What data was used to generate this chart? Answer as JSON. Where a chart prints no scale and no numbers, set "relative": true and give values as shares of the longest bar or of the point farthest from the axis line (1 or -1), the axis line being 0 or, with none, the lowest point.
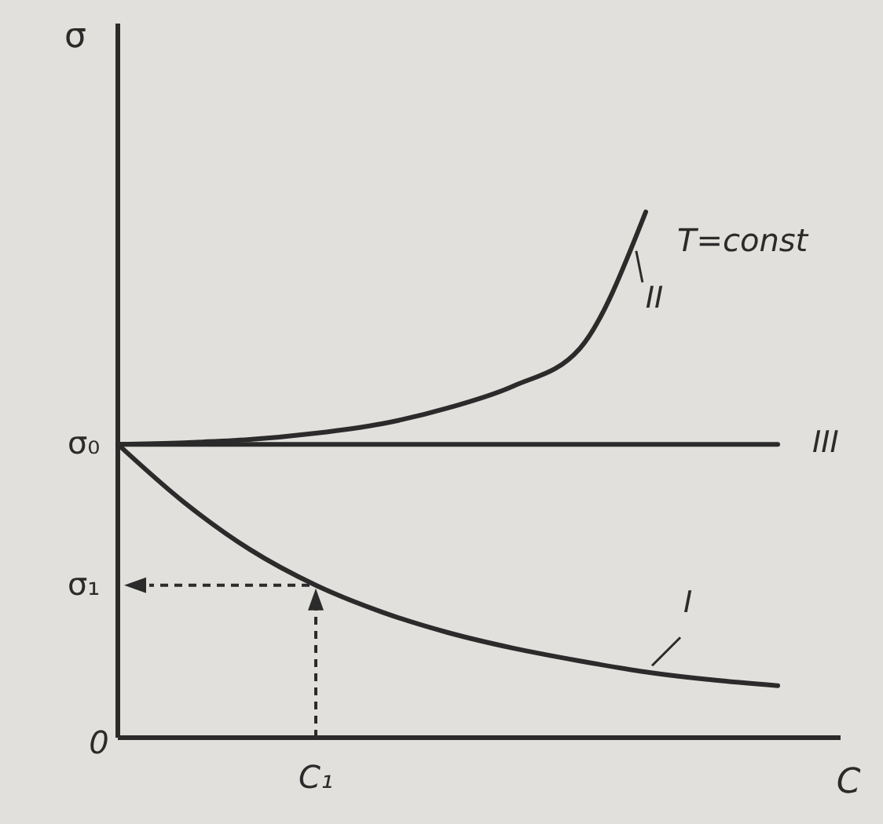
{
  "chart_data": {
    "type": "line",
    "relative": true,
    "xlabel": "C",
    "ylabel": "σ",
    "categories": [
      null,
      null,
      null,
      null,
      null,
      null,
      null,
      null,
      null,
      null,
      null
    ],
    "series": [
      {
        "name": "I",
        "color": "#2b2b2b",
        "values": [
          0.558,
          0.448,
          0.358,
          0.29,
          0.239,
          0.2,
          0.17,
          0.146,
          0.125,
          0.11,
          0.099
        ]
      },
      {
        "name": "II",
        "color": "#2b2b2b",
        "values": [
          0.558,
          0.561,
          0.567,
          0.579,
          0.597,
          0.627,
          0.669,
          0.74,
          1,
          null,
          null
        ]
      },
      {
        "name": "III",
        "color": "#2b2b2b",
        "values": [
          0.558,
          0.558,
          0.558,
          0.558,
          0.558,
          0.558,
          0.558,
          0.558,
          0.558,
          0.558,
          0.558
        ]
      }
    ],
    "annotations": [
      "σ₀",
      "σ₁",
      "C₁",
      "0",
      "T=const"
    ],
    "marker": "none",
    "line_style": "solid"
  }
}
